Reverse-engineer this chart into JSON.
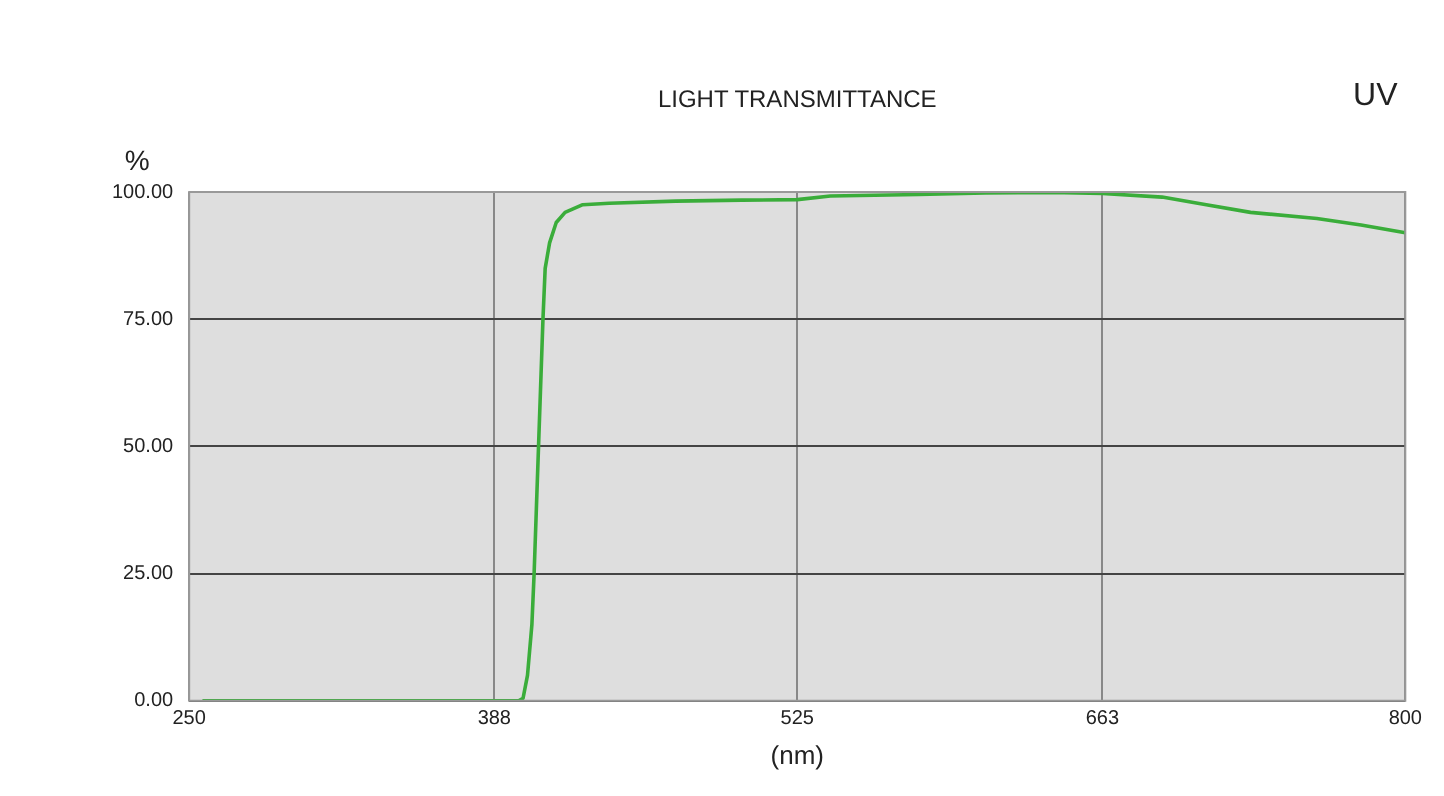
{
  "chart_data": {
    "type": "line",
    "title": "LIGHT TRANSMITTANCE",
    "xlabel": "(nm)",
    "ylabel": "%",
    "annotations": [
      "UV"
    ],
    "series": [
      {
        "color": "#3aad3a",
        "x": [
          256,
          399,
          401,
          403,
          405,
          406,
          408,
          410,
          411,
          413,
          416,
          420,
          428,
          440,
          470,
          500,
          525,
          540,
          580,
          610,
          640,
          663,
          690,
          710,
          730,
          760,
          780,
          800
        ],
        "values": [
          0,
          0,
          0.5,
          5,
          15,
          25,
          50,
          75,
          85,
          90,
          94,
          96,
          97.5,
          97.8,
          98.2,
          98.4,
          98.5,
          99.2,
          99.5,
          99.8,
          99.9,
          99.7,
          99,
          97.5,
          96,
          94.8,
          93.5,
          92
        ]
      }
    ],
    "xlim": [
      250,
      800
    ],
    "xticks": [
      250,
      388,
      525,
      663,
      800
    ],
    "ylim": [
      0,
      100
    ],
    "yticks": [
      {
        "value": 0,
        "label": "0.00"
      },
      {
        "value": 25,
        "label": "25.00"
      },
      {
        "value": 50,
        "label": "50.00"
      },
      {
        "value": 75,
        "label": "75.00"
      },
      {
        "value": 100,
        "label": "100.00"
      }
    ],
    "grid": true,
    "legend": false,
    "marker": "none",
    "line_style": "solid"
  }
}
